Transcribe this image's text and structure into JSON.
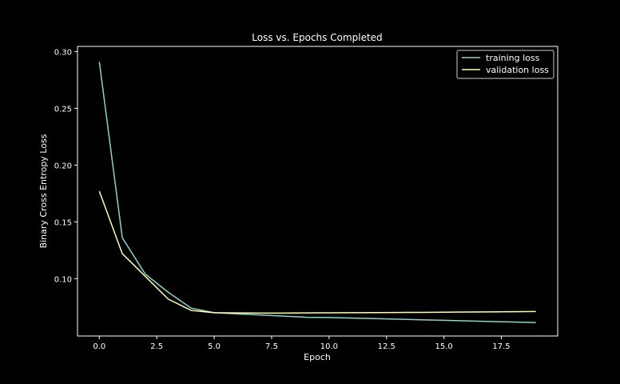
{
  "chart_data": {
    "type": "line",
    "title": "Loss vs. Epochs Completed",
    "xlabel": "Epoch",
    "ylabel": "Binary Cross Entropy Loss",
    "xlim": [
      -0.95,
      19.95
    ],
    "ylim": [
      0.0495,
      0.3045
    ],
    "xticks": [
      0.0,
      2.5,
      5.0,
      7.5,
      10.0,
      12.5,
      15.0,
      17.5
    ],
    "xtick_labels": [
      "0.0",
      "2.5",
      "5.0",
      "7.5",
      "10.0",
      "12.5",
      "15.0",
      "17.5"
    ],
    "yticks": [
      0.1,
      0.15,
      0.2,
      0.25,
      0.3
    ],
    "ytick_labels": [
      "0.10",
      "0.15",
      "0.20",
      "0.25",
      "0.30"
    ],
    "grid": false,
    "legend_position": "top-right",
    "x": [
      0,
      1,
      2,
      3,
      4,
      5,
      6,
      7,
      8,
      9,
      10,
      11,
      12,
      13,
      14,
      15,
      16,
      17,
      18,
      19
    ],
    "series": [
      {
        "name": "training loss",
        "color": "#8dd3c7",
        "values": [
          0.291,
          0.136,
          0.104,
          0.088,
          0.074,
          0.07,
          0.069,
          0.068,
          0.067,
          0.066,
          0.0658,
          0.0653,
          0.0648,
          0.0643,
          0.0638,
          0.0633,
          0.0628,
          0.0623,
          0.0618,
          0.0613
        ]
      },
      {
        "name": "validation loss",
        "color": "#ffffb3",
        "values": [
          0.177,
          0.122,
          0.102,
          0.082,
          0.072,
          0.07,
          0.0698,
          0.0697,
          0.0697,
          0.0698,
          0.0699,
          0.07,
          0.0701,
          0.0702,
          0.0703,
          0.0705,
          0.0706,
          0.0707,
          0.0709,
          0.0711
        ]
      }
    ]
  }
}
